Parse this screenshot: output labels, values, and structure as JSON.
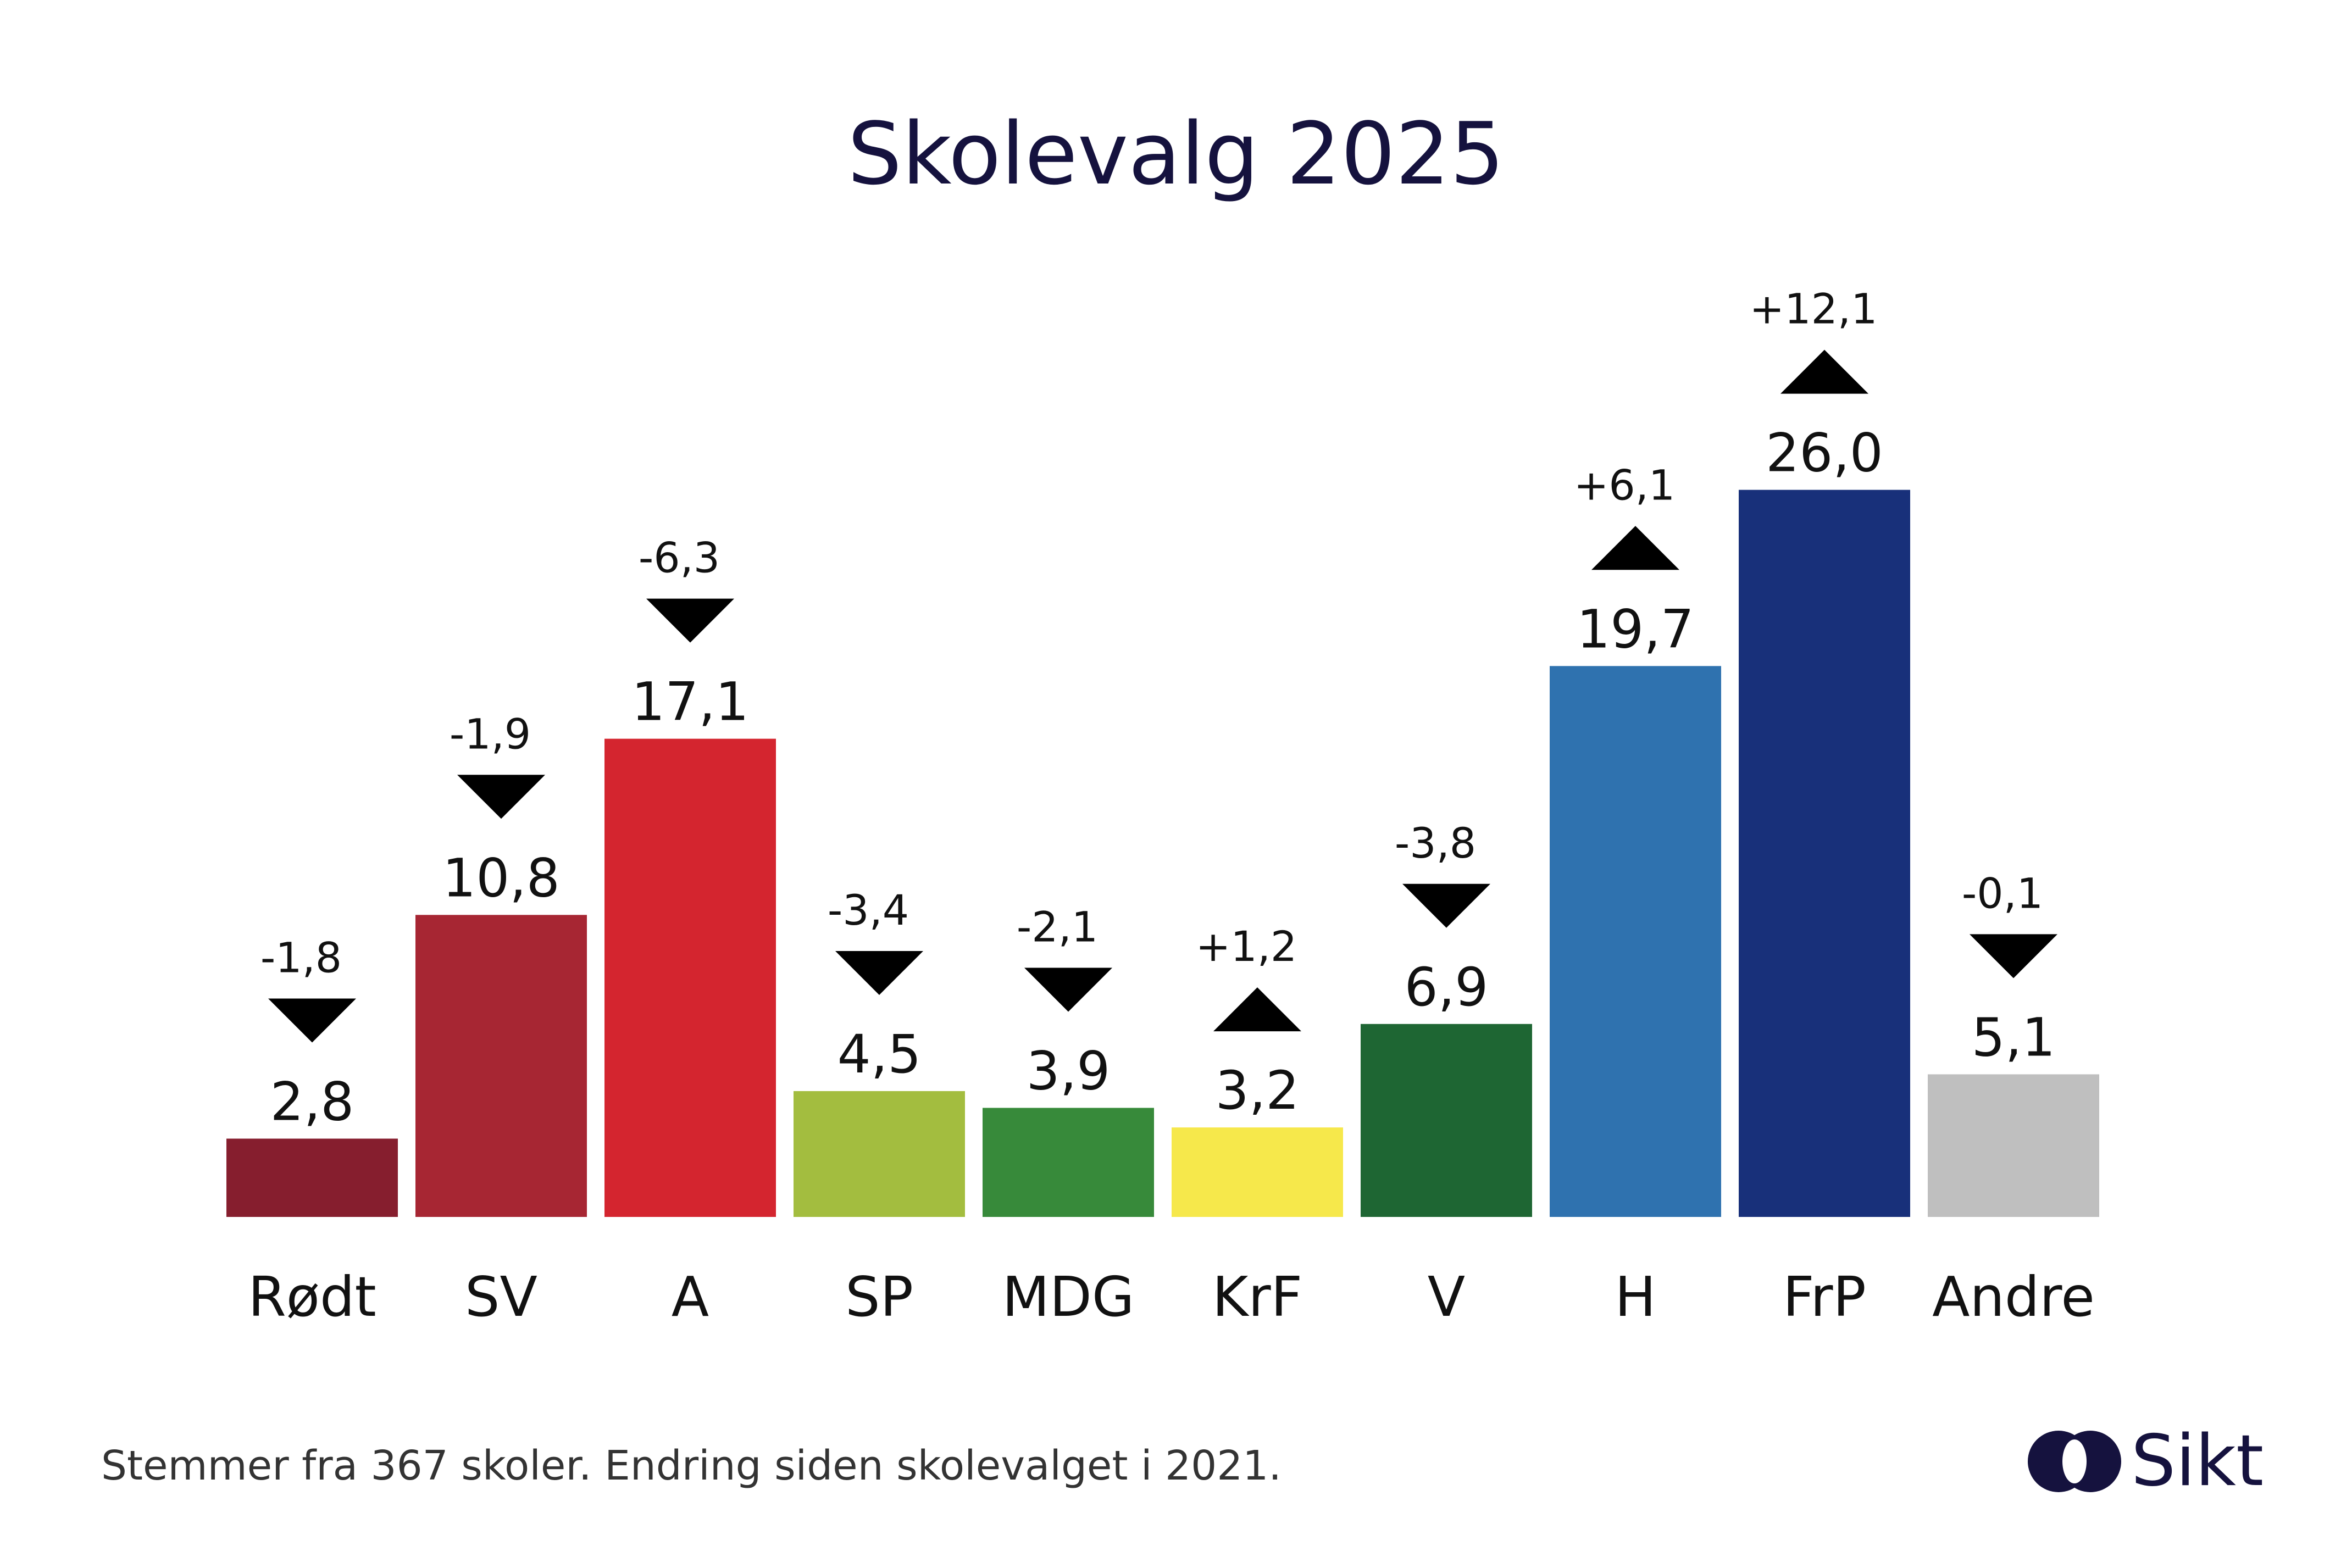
{
  "chart_data": {
    "type": "bar",
    "title": "Skolevalg 2025",
    "categories": [
      "Rødt",
      "SV",
      "A",
      "SP",
      "MDG",
      "KrF",
      "V",
      "H",
      "FrP",
      "Andre"
    ],
    "values": [
      2.8,
      10.8,
      17.1,
      4.5,
      3.9,
      3.2,
      6.9,
      19.7,
      26.0,
      5.1
    ],
    "value_labels": [
      "2,8",
      "10,8",
      "17,1",
      "4,5",
      "3,9",
      "3,2",
      "6,9",
      "19,7",
      "26,0",
      "5,1"
    ],
    "changes": [
      -1.8,
      -1.9,
      -6.3,
      -3.4,
      -2.1,
      1.2,
      -3.8,
      6.1,
      12.1,
      -0.1
    ],
    "change_labels": [
      "-1,8",
      "-1,9",
      "-6,3",
      "-3,4",
      "-2,1",
      "+1,2",
      "-3,8",
      "+6,1",
      "+12,1",
      "-0,1"
    ],
    "colors": [
      "#861e2e",
      "#a72633",
      "#d4252f",
      "#a3bd3f",
      "#378a3a",
      "#f6e84b",
      "#1e6633",
      "#2f72af",
      "#18307a",
      "#bfbfbf"
    ],
    "xlabel": "",
    "ylabel": "",
    "ylim": [
      0,
      26
    ],
    "grid": false,
    "legend": "none"
  },
  "footnote": "Stemmer fra 367 skoler. Endring siden skolevalget i 2021.",
  "logo": {
    "text": "Sikt",
    "icon": "sikt-logo-icon",
    "color": "#15123e"
  }
}
